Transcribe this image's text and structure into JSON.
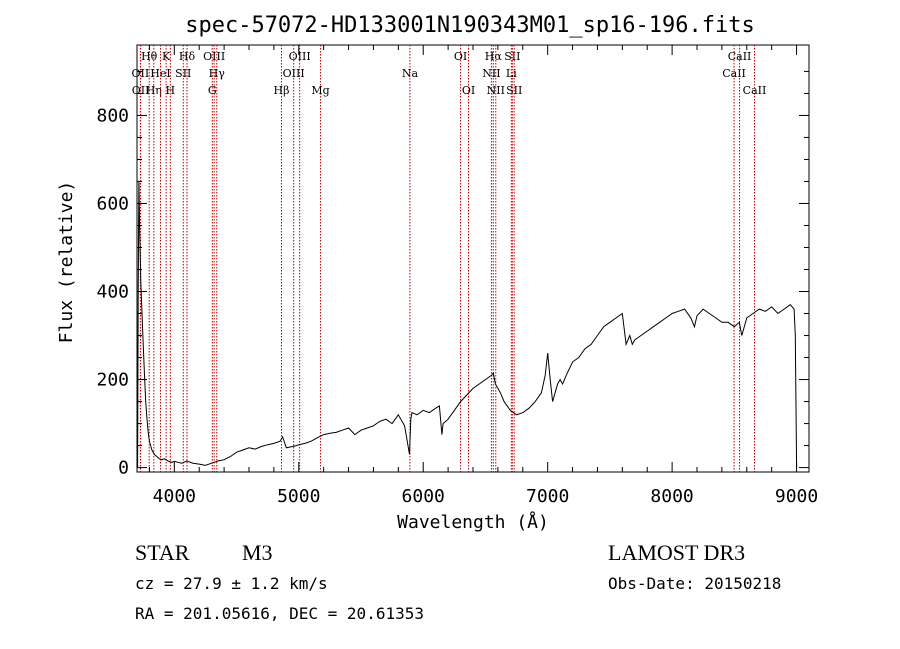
{
  "chart_data": {
    "type": "line",
    "title": "spec-57072-HD133001N190343M01_sp16-196.fits",
    "xlabel": "Wavelength (Å)",
    "ylabel": "Flux (relative)",
    "xlim": [
      3700,
      9100
    ],
    "ylim": [
      -10,
      960
    ],
    "xticks": [
      4000,
      5000,
      6000,
      7000,
      8000,
      9000
    ],
    "yticks": [
      0,
      200,
      400,
      600,
      800
    ],
    "series": [
      {
        "name": "spectrum",
        "x": [
          3700,
          3705,
          3710,
          3715,
          3720,
          3730,
          3740,
          3750,
          3760,
          3770,
          3780,
          3790,
          3800,
          3820,
          3840,
          3860,
          3880,
          3900,
          3920,
          3950,
          3980,
          4000,
          4030,
          4060,
          4100,
          4150,
          4200,
          4250,
          4300,
          4350,
          4400,
          4450,
          4500,
          4550,
          4600,
          4650,
          4700,
          4750,
          4800,
          4850,
          4870,
          4900,
          4950,
          4980,
          5000,
          5050,
          5100,
          5150,
          5200,
          5250,
          5300,
          5350,
          5400,
          5450,
          5500,
          5550,
          5600,
          5650,
          5700,
          5750,
          5800,
          5850,
          5890,
          5900,
          5910,
          5950,
          6000,
          6050,
          6100,
          6130,
          6150,
          6160,
          6200,
          6250,
          6300,
          6350,
          6400,
          6450,
          6500,
          6550,
          6563,
          6580,
          6620,
          6650,
          6700,
          6750,
          6800,
          6850,
          6900,
          6950,
          6980,
          7000,
          7020,
          7040,
          7060,
          7080,
          7100,
          7120,
          7150,
          7200,
          7250,
          7300,
          7350,
          7400,
          7450,
          7500,
          7550,
          7600,
          7630,
          7660,
          7680,
          7700,
          7750,
          7800,
          7850,
          7900,
          7950,
          8000,
          8050,
          8100,
          8150,
          8180,
          8200,
          8250,
          8300,
          8350,
          8400,
          8450,
          8500,
          8540,
          8560,
          8600,
          8650,
          8700,
          8750,
          8800,
          8850,
          8900,
          8950,
          8980,
          8990,
          9000
        ],
        "values": [
          150,
          0,
          400,
          650,
          560,
          430,
          350,
          280,
          210,
          150,
          110,
          80,
          60,
          40,
          30,
          25,
          20,
          18,
          20,
          15,
          12,
          14,
          12,
          10,
          15,
          10,
          8,
          5,
          10,
          15,
          18,
          25,
          35,
          40,
          45,
          42,
          48,
          52,
          55,
          60,
          70,
          45,
          48,
          50,
          52,
          55,
          60,
          68,
          75,
          78,
          80,
          85,
          90,
          75,
          85,
          90,
          95,
          105,
          110,
          100,
          120,
          95,
          30,
          110,
          125,
          120,
          130,
          125,
          135,
          140,
          75,
          100,
          110,
          130,
          150,
          165,
          180,
          190,
          200,
          210,
          215,
          190,
          170,
          150,
          130,
          120,
          125,
          135,
          150,
          170,
          210,
          260,
          200,
          150,
          170,
          190,
          200,
          190,
          210,
          240,
          250,
          270,
          280,
          300,
          320,
          330,
          340,
          350,
          280,
          300,
          280,
          290,
          300,
          310,
          320,
          330,
          340,
          350,
          355,
          360,
          340,
          320,
          345,
          360,
          350,
          340,
          330,
          330,
          320,
          330,
          300,
          340,
          350,
          360,
          355,
          365,
          350,
          360,
          370,
          360,
          300,
          0
        ]
      }
    ],
    "lines": [
      {
        "label": "Hθ",
        "wl": 3798,
        "row": 1
      },
      {
        "label": "OII",
        "wl": 3727,
        "row": 2
      },
      {
        "label": "OII",
        "wl": 3729,
        "row": 3
      },
      {
        "label": "Hη",
        "wl": 3835,
        "row": 3
      },
      {
        "label": "HeI",
        "wl": 3889,
        "row": 2
      },
      {
        "label": "K",
        "wl": 3934,
        "row": 1
      },
      {
        "label": "H",
        "wl": 3968,
        "row": 3
      },
      {
        "label": "SII",
        "wl": 4072,
        "row": 2
      },
      {
        "label": "Hδ",
        "wl": 4102,
        "row": 1
      },
      {
        "label": "OIII",
        "wl": 4320,
        "row": 1
      },
      {
        "label": "Hγ",
        "wl": 4341,
        "row": 2
      },
      {
        "label": "G",
        "wl": 4305,
        "row": 3
      },
      {
        "label": "Hβ",
        "wl": 4861,
        "row": 3
      },
      {
        "label": "OIII",
        "wl": 4959,
        "row": 2
      },
      {
        "label": "OIII",
        "wl": 5007,
        "row": 1
      },
      {
        "label": "Mg",
        "wl": 5175,
        "row": 3
      },
      {
        "label": "Na",
        "wl": 5893,
        "row": 2
      },
      {
        "label": "OI",
        "wl": 6300,
        "row": 1
      },
      {
        "label": "OI",
        "wl": 6364,
        "row": 3
      },
      {
        "label": "NII",
        "wl": 6548,
        "row": 2
      },
      {
        "label": "Hα",
        "wl": 6563,
        "row": 1
      },
      {
        "label": "NII",
        "wl": 6583,
        "row": 3
      },
      {
        "label": "SII",
        "wl": 6716,
        "row": 1
      },
      {
        "label": "Li",
        "wl": 6708,
        "row": 2
      },
      {
        "label": "SII",
        "wl": 6731,
        "row": 3
      },
      {
        "label": "CaII",
        "wl": 8498,
        "row": 2
      },
      {
        "label": "CaII",
        "wl": 8542,
        "row": 1
      },
      {
        "label": "CaII",
        "wl": 8662,
        "row": 3
      }
    ]
  },
  "info": {
    "object_class": "STAR",
    "subclass": "M3",
    "survey": "LAMOST DR3",
    "redshift": "cz = 27.9 ± 1.2 km/s",
    "obs_date": "Obs-Date: 20150218",
    "coords": "RA = 201.05616, DEC =  20.61353"
  }
}
